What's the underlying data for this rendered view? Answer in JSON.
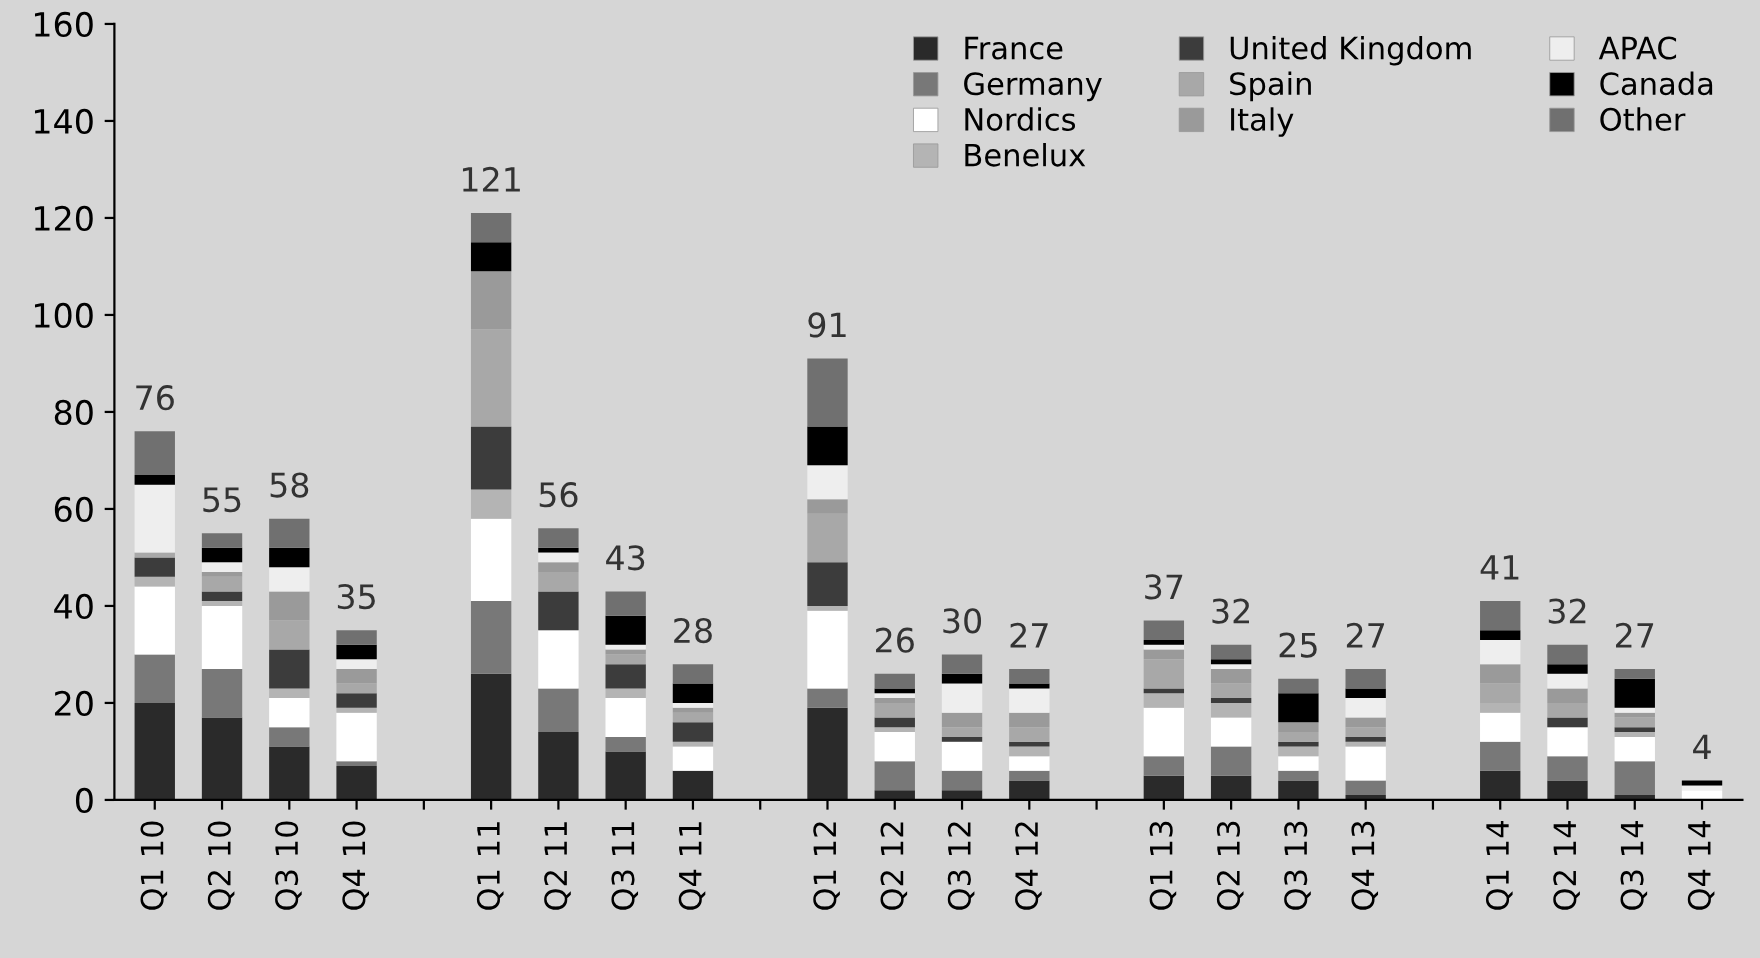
{
  "chart_data": {
    "type": "bar",
    "stacked": true,
    "categories": [
      "Q1 10",
      "Q2 10",
      "Q3 10",
      "Q4 10",
      null,
      "Q1 11",
      "Q2 11",
      "Q3 11",
      "Q4 11",
      null,
      "Q1 12",
      "Q2 12",
      "Q3 12",
      "Q4 12",
      null,
      "Q1 13",
      "Q2 13",
      "Q3 13",
      "Q4 13",
      null,
      "Q1 14",
      "Q2 14",
      "Q3 14",
      "Q4 14"
    ],
    "series": [
      {
        "name": "France",
        "color": "#2a2a2a",
        "values": [
          20,
          17,
          11,
          7,
          null,
          26,
          14,
          10,
          6,
          null,
          19,
          2,
          2,
          4,
          null,
          5,
          5,
          4,
          1,
          null,
          6,
          4,
          1,
          0
        ]
      },
      {
        "name": "Germany",
        "color": "#787878",
        "values": [
          10,
          10,
          4,
          1,
          null,
          15,
          9,
          3,
          0,
          null,
          4,
          6,
          4,
          2,
          null,
          4,
          6,
          2,
          3,
          null,
          6,
          5,
          7,
          0
        ]
      },
      {
        "name": "Nordics",
        "color": "#ffffff",
        "values": [
          14,
          13,
          6,
          10,
          null,
          17,
          12,
          8,
          5,
          null,
          16,
          6,
          6,
          3,
          null,
          10,
          6,
          3,
          7,
          null,
          6,
          6,
          5,
          2
        ]
      },
      {
        "name": "Benelux",
        "color": "#b4b4b4",
        "values": [
          2,
          1,
          2,
          1,
          null,
          6,
          0,
          2,
          1,
          null,
          1,
          1,
          0,
          2,
          null,
          3,
          3,
          2,
          1,
          null,
          2,
          0,
          1,
          0
        ]
      },
      {
        "name": "United Kingdom",
        "color": "#3c3c3c",
        "values": [
          4,
          2,
          8,
          3,
          null,
          13,
          8,
          5,
          4,
          null,
          9,
          2,
          1,
          1,
          null,
          1,
          1,
          1,
          1,
          null,
          0,
          2,
          1,
          0
        ]
      },
      {
        "name": "Spain",
        "color": "#a8a8a8",
        "values": [
          1,
          3,
          6,
          2,
          null,
          20,
          4,
          2,
          2,
          null,
          10,
          3,
          2,
          3,
          null,
          6,
          3,
          2,
          2,
          null,
          4,
          3,
          2,
          0
        ]
      },
      {
        "name": "Italy",
        "color": "#9a9a9a",
        "values": [
          0,
          1,
          6,
          3,
          null,
          12,
          2,
          1,
          1,
          null,
          3,
          1,
          3,
          3,
          null,
          2,
          3,
          2,
          2,
          null,
          4,
          3,
          1,
          0
        ]
      },
      {
        "name": "APAC",
        "color": "#eeeeee",
        "values": [
          14,
          2,
          5,
          2,
          null,
          0,
          2,
          1,
          1,
          null,
          7,
          1,
          6,
          5,
          null,
          1,
          1,
          0,
          4,
          null,
          5,
          3,
          1,
          1
        ]
      },
      {
        "name": "Canada",
        "color": "#000000",
        "values": [
          2,
          3,
          4,
          3,
          null,
          6,
          1,
          6,
          4,
          null,
          8,
          1,
          2,
          1,
          null,
          1,
          1,
          6,
          2,
          null,
          2,
          2,
          6,
          1
        ]
      },
      {
        "name": "Other",
        "color": "#707070",
        "values": [
          9,
          3,
          6,
          3,
          null,
          6,
          4,
          5,
          4,
          null,
          14,
          3,
          4,
          3,
          null,
          4,
          3,
          3,
          4,
          null,
          6,
          4,
          2,
          0
        ]
      }
    ],
    "totals": [
      "76",
      "55",
      "58",
      "35",
      null,
      "121",
      "56",
      "43",
      "28",
      null,
      "91",
      "26",
      "30",
      "27",
      null,
      "37",
      "32",
      "25",
      "27",
      null,
      "41",
      "32",
      "27",
      "4"
    ],
    "ylim": [
      0,
      160
    ],
    "yticks": [
      0,
      20,
      40,
      60,
      80,
      100,
      120,
      140,
      160
    ],
    "legend": "top right",
    "grid": false
  }
}
